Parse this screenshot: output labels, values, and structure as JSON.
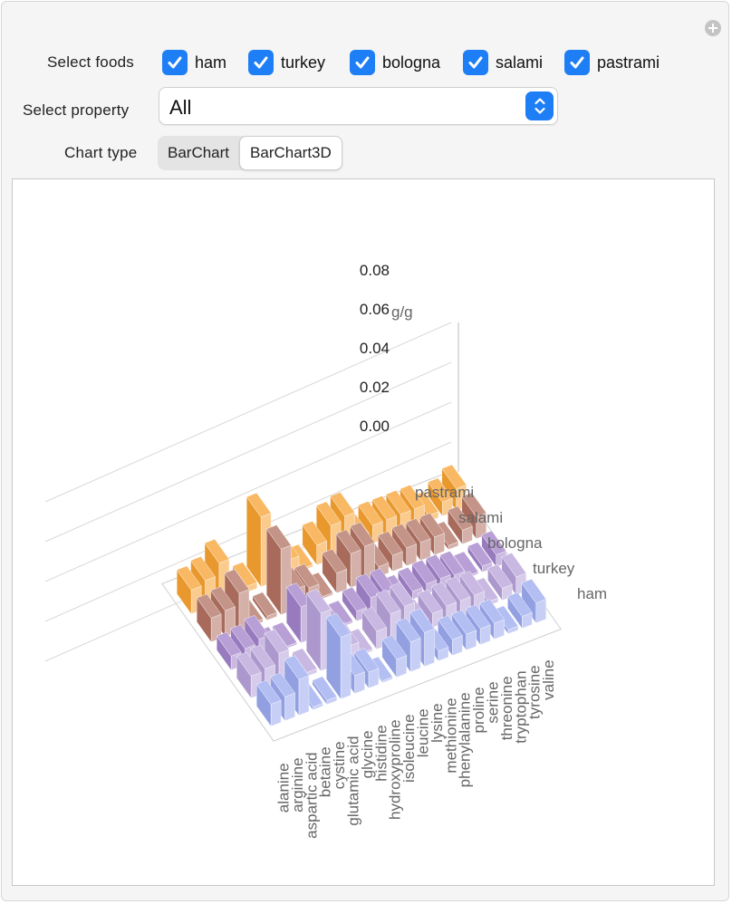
{
  "controls": {
    "foods_label": "Select foods",
    "foods": [
      {
        "label": "ham",
        "checked": true
      },
      {
        "label": "turkey",
        "checked": true
      },
      {
        "label": "bologna",
        "checked": true
      },
      {
        "label": "salami",
        "checked": true
      },
      {
        "label": "pastrami",
        "checked": true
      }
    ],
    "property_label": "Select property",
    "property_value": "All",
    "chart_type_label": "Chart type",
    "chart_types": [
      "BarChart",
      "BarChart3D"
    ],
    "chart_type_selected": "BarChart3D"
  },
  "colors": {
    "checkbox": "#1e7ef6",
    "frame_bg": "#f5f5f5",
    "row_colors": [
      "#9aa8ee",
      "#b5a0d8",
      "#a080c8",
      "#b07060",
      "#f5a030"
    ]
  },
  "chart_data": {
    "type": "bar",
    "title": "",
    "ylabel": "g/g",
    "yticks": [
      "0.00",
      "0.02",
      "0.04",
      "0.06",
      "0.08"
    ],
    "ylim": [
      0,
      0.08
    ],
    "categories": [
      "alanine",
      "arginine",
      "aspartic acid",
      "betaine",
      "cystine",
      "glutamic acid",
      "glycine",
      "histidine",
      "hydroxyproline",
      "isoleucine",
      "leucine",
      "lysine",
      "methionine",
      "phenylalanine",
      "proline",
      "serine",
      "threonine",
      "tryptophan",
      "tyrosine",
      "valine"
    ],
    "series": [
      {
        "name": "ham",
        "values": [
          0.011,
          0.012,
          0.018,
          0.0,
          0.002,
          0.031,
          0.009,
          0.008,
          0.001,
          0.009,
          0.015,
          0.017,
          0.005,
          0.008,
          0.008,
          0.008,
          0.008,
          0.002,
          0.006,
          0.01
        ]
      },
      {
        "name": "turkey",
        "values": [
          0.011,
          0.012,
          0.017,
          0.0,
          0.002,
          0.029,
          0.009,
          0.007,
          0.001,
          0.009,
          0.015,
          0.016,
          0.005,
          0.007,
          0.008,
          0.008,
          0.008,
          0.002,
          0.006,
          0.009
        ]
      },
      {
        "name": "bologna",
        "values": [
          0.007,
          0.008,
          0.01,
          0.0,
          0.001,
          0.018,
          0.006,
          0.004,
          0.001,
          0.005,
          0.009,
          0.009,
          0.003,
          0.004,
          0.005,
          0.005,
          0.004,
          0.001,
          0.003,
          0.006
        ]
      },
      {
        "name": "salami",
        "values": [
          0.012,
          0.013,
          0.019,
          0.0,
          0.002,
          0.033,
          0.01,
          0.008,
          0.001,
          0.01,
          0.017,
          0.018,
          0.005,
          0.008,
          0.009,
          0.009,
          0.009,
          0.002,
          0.007,
          0.011
        ]
      },
      {
        "name": "pastrami",
        "values": [
          0.012,
          0.014,
          0.02,
          0.0,
          0.003,
          0.035,
          0.01,
          0.008,
          0.001,
          0.01,
          0.017,
          0.019,
          0.006,
          0.009,
          0.009,
          0.009,
          0.009,
          0.003,
          0.007,
          0.011
        ]
      }
    ],
    "grid": true,
    "legend": "none"
  }
}
